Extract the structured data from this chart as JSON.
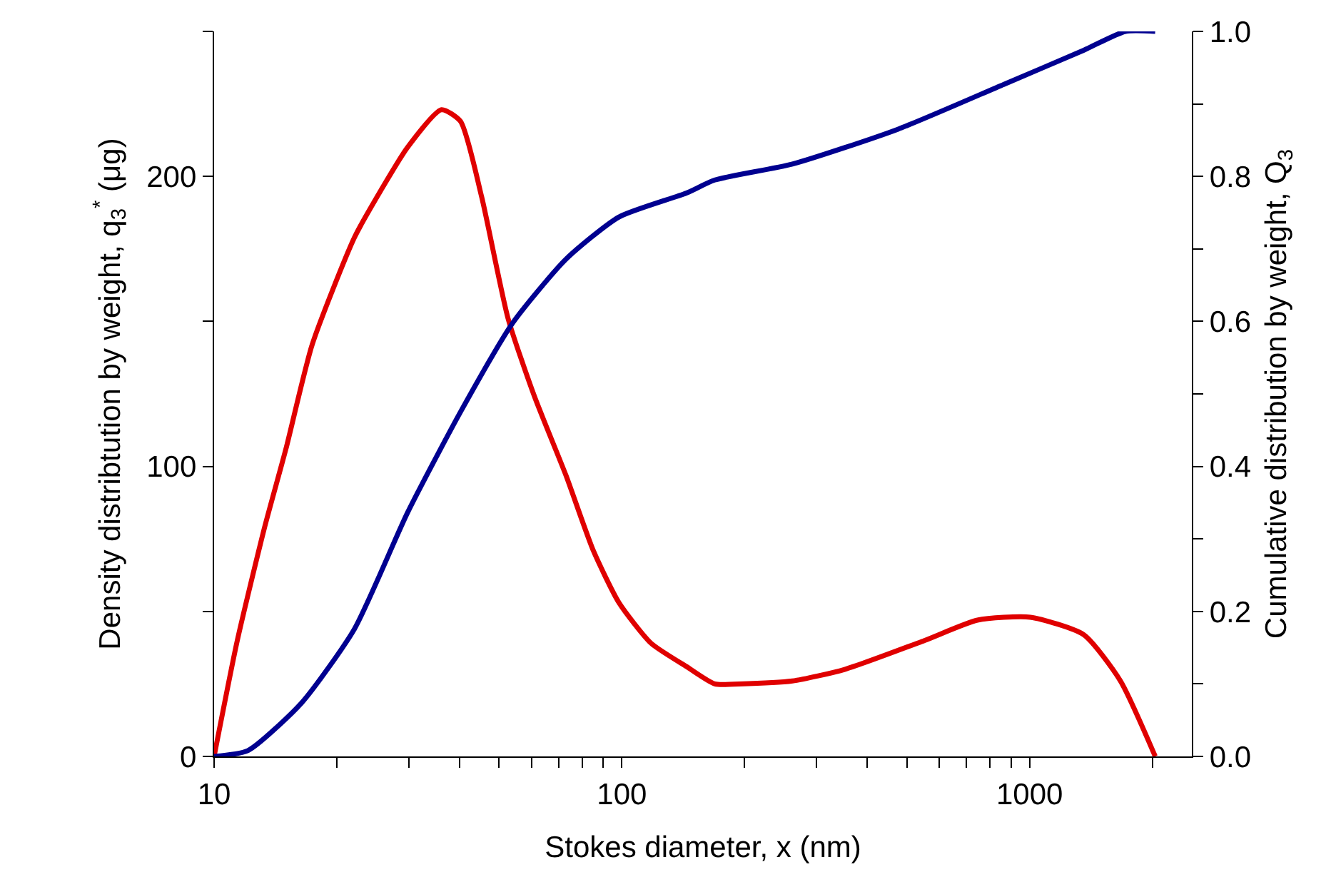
{
  "chart_data": {
    "type": "line",
    "xlabel": "Stokes diameter, x (nm)",
    "ylabel": "Density distribtution by weight, q$_{3}$$^{*}$ (μg)",
    "y2label": "Cumulative distribution by weight, Q$_{3}$",
    "log": "x",
    "marker": "none",
    "line_style": "solid",
    "xlim": [
      10,
      2500
    ],
    "xticks": [
      10,
      {
        "value": 20,
        "label": null
      },
      {
        "value": 30,
        "label": null
      },
      {
        "value": 40,
        "label": null
      },
      {
        "value": 50,
        "label": null
      },
      {
        "value": 60,
        "label": null
      },
      {
        "value": 70,
        "label": null
      },
      {
        "value": 80,
        "label": null
      },
      {
        "value": 90,
        "label": null
      },
      100,
      {
        "value": 200,
        "label": null
      },
      {
        "value": 300,
        "label": null
      },
      {
        "value": 400,
        "label": null
      },
      {
        "value": 500,
        "label": null
      },
      {
        "value": 600,
        "label": null
      },
      {
        "value": 700,
        "label": null
      },
      {
        "value": 800,
        "label": null
      },
      {
        "value": 900,
        "label": null
      },
      1000,
      {
        "value": 2000,
        "label": null
      }
    ],
    "ylim": [
      0,
      250
    ],
    "yticks": [
      0,
      {
        "value": 50,
        "label": null
      },
      100,
      {
        "value": 150,
        "label": null
      },
      200,
      {
        "value": 250,
        "label": null
      }
    ],
    "y2lim": [
      0,
      1
    ],
    "y2ticks": [
      {
        "value": 0,
        "label": "0.0"
      },
      {
        "value": 0.1,
        "label": null
      },
      0.2,
      {
        "value": 0.3,
        "label": null
      },
      0.4,
      {
        "value": 0.5,
        "label": null
      },
      0.6,
      {
        "value": 0.7,
        "label": null
      },
      0.8,
      {
        "value": 0.9,
        "label": null
      },
      {
        "value": 1,
        "label": "1.0"
      }
    ],
    "series": [
      {
        "color": "#e00000",
        "x": [
          10,
          11.4,
          13.3,
          15.0,
          17.4,
          22.1,
          25.6,
          29.8,
          36.1,
          40.2,
          45.3,
          52.6,
          61.1,
          72.9,
          85.1,
          98.4,
          118,
          144,
          169,
          194,
          262,
          352,
          553,
          745,
          1004,
          1357,
          1671,
          2033
        ],
        "values": [
          0,
          40,
          79,
          106,
          142,
          179,
          195,
          210,
          223,
          219,
          193,
          151,
          124,
          97,
          71,
          53,
          39,
          31,
          25,
          25,
          26,
          30,
          40,
          47,
          48,
          42,
          26,
          0
        ]
      },
      {
        "color": "#000090",
        "axis": "y2",
        "x": [
          10,
          12.1,
          16.4,
          22.1,
          29.8,
          40.2,
          54,
          73,
          98.4,
          144,
          169,
          262,
          475,
          865,
          1357,
          1718,
          2033
        ],
        "values": [
          0,
          0.008,
          0.074,
          0.176,
          0.336,
          0.475,
          0.598,
          0.686,
          0.744,
          0.777,
          0.795,
          0.817,
          0.865,
          0.927,
          0.974,
          1.0,
          1.0
        ]
      }
    ]
  }
}
